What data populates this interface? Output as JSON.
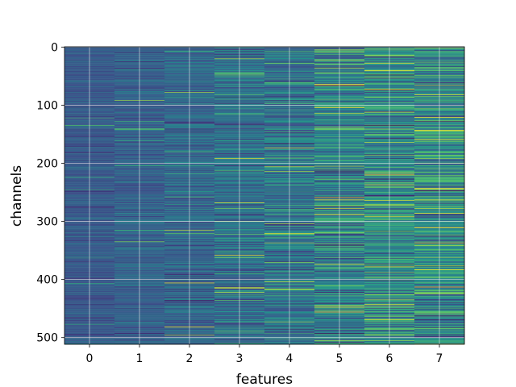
{
  "chart_data": {
    "type": "heatmap",
    "xlabel": "features",
    "ylabel": "channels",
    "x_ticks": [
      "0",
      "1",
      "2",
      "3",
      "4",
      "5",
      "6",
      "7"
    ],
    "y_ticks": [
      "0",
      "100",
      "200",
      "300",
      "400",
      "500"
    ],
    "y_tick_values": [
      0,
      100,
      200,
      300,
      400,
      500
    ],
    "n_features": 8,
    "n_channels": 512,
    "grid": true,
    "colormap": [
      "#440154",
      "#3b528b",
      "#21918c",
      "#5ec962",
      "#fde725"
    ],
    "column_mean_level": [
      0.28,
      0.3,
      0.33,
      0.36,
      0.38,
      0.43,
      0.45,
      0.48
    ],
    "column_variability": [
      0.05,
      0.06,
      0.08,
      0.11,
      0.12,
      0.15,
      0.16,
      0.17
    ]
  }
}
